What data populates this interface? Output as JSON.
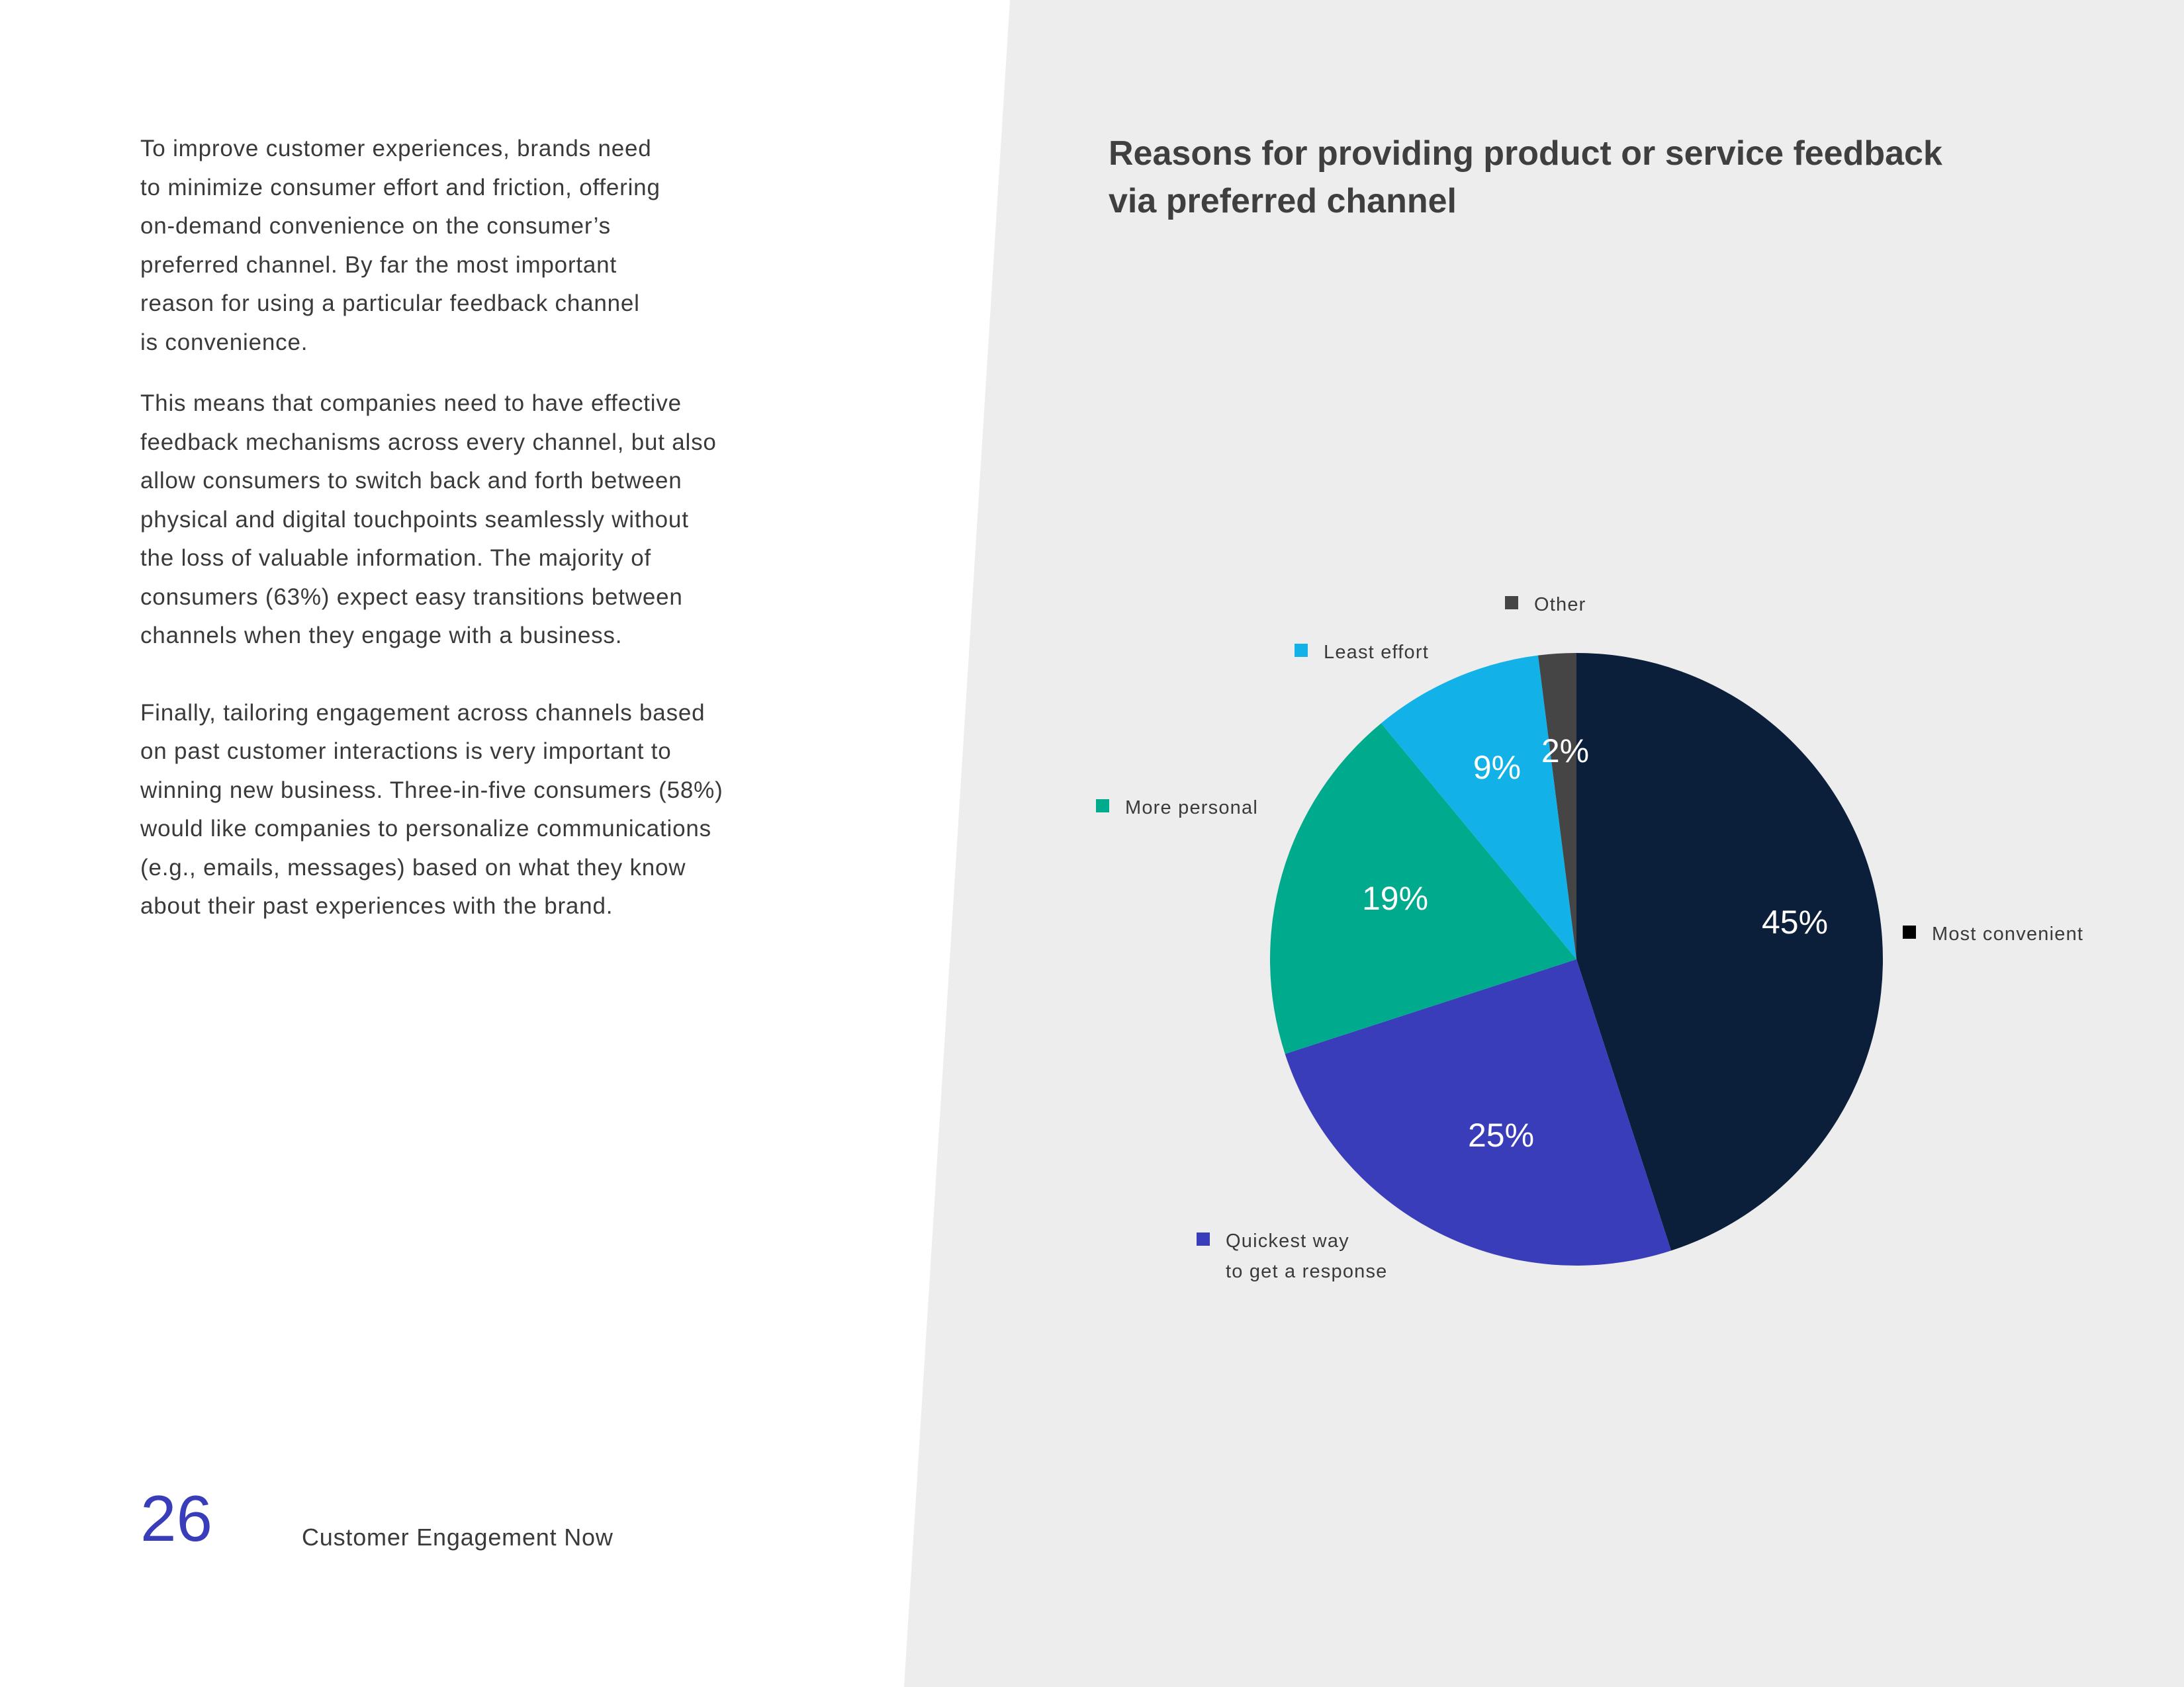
{
  "body_text": {
    "paragraph_1": "To improve customer experiences, brands need\nto minimize consumer effort and friction, offering\non-demand convenience on the consumer’s\npreferred channel. By far the most important\nreason for using a particular feedback channel\nis convenience.",
    "paragraph_2": "This means that companies need to have effective\nfeedback mechanisms across every channel, but also\nallow consumers to switch back and forth between\nphysical and digital touchpoints seamlessly without\nthe loss of valuable information. The majority of\nconsumers (63%) expect easy transitions between\nchannels when they engage with a business.",
    "paragraph_3": "Finally, tailoring engagement across channels based\non past customer interactions is very important to\nwinning new business. Three-in-five consumers (58%)\nwould like companies to personalize communications\n(e.g., emails, messages) based on what they know\nabout their past experiences with the brand."
  },
  "footer": {
    "page_number": "26",
    "publication_title": "Customer Engagement Now"
  },
  "colors": {
    "panel_background": "#ededee",
    "text": "#3a3a3a",
    "title": "#3f3f3f",
    "accent": "#3a3dba",
    "slice_label": "#ffffff"
  },
  "chart_data": {
    "type": "pie",
    "title": "Reasons for providing product or service feedback\nvia preferred channel",
    "slices": [
      {
        "category": "Most convenient",
        "value": 45,
        "label": "45%",
        "color": "#0b1e3a",
        "legend_color": "#000000"
      },
      {
        "category": "Quickest way\nto get a response",
        "value": 25,
        "label": "25%",
        "color": "#3a3dba",
        "legend_color": "#3a3dba"
      },
      {
        "category": "More personal",
        "value": 19,
        "label": "19%",
        "color": "#00aa8c",
        "legend_color": "#00aa8c"
      },
      {
        "category": "Least effort",
        "value": 9,
        "label": "9%",
        "color": "#12b2e8",
        "legend_color": "#12b2e8"
      },
      {
        "category": "Other",
        "value": 2,
        "label": "2%",
        "color": "#454545",
        "legend_color": "#454545"
      }
    ]
  }
}
